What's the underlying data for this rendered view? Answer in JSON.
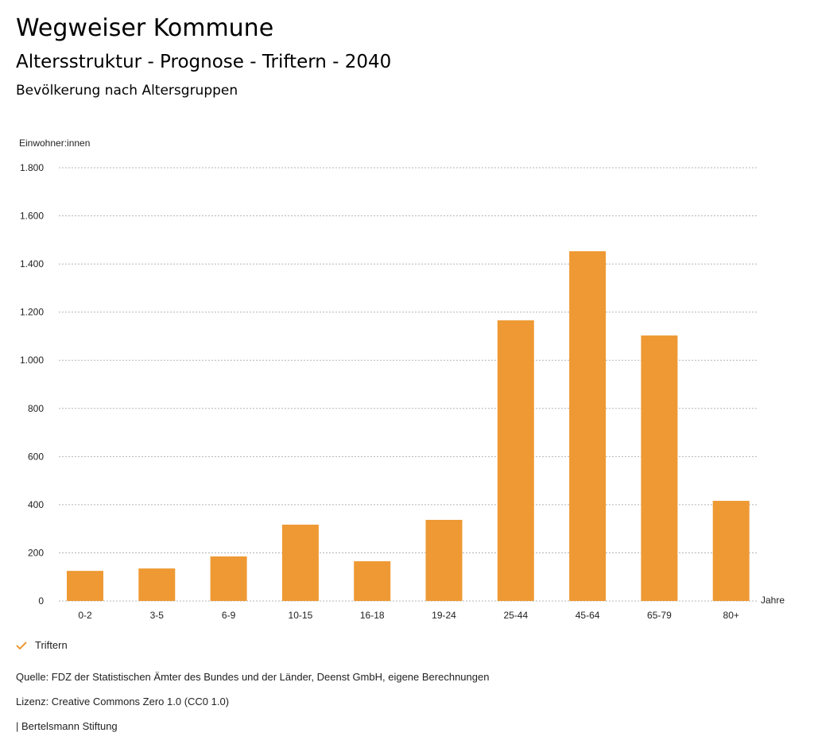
{
  "header": {
    "title": "Wegweiser Kommune",
    "subtitle": "Altersstruktur - Prognose - Triftern - 2040",
    "chart_title": "Bevölkerung nach Altersgruppen"
  },
  "chart_data": {
    "type": "bar",
    "title": "Bevölkerung nach Altersgruppen",
    "ylabel": "Einwohner:innen",
    "xlabel": "Jahre",
    "categories": [
      "0-2",
      "3-5",
      "6-9",
      "10-15",
      "16-18",
      "19-24",
      "25-44",
      "45-64",
      "65-79",
      "80+"
    ],
    "series": [
      {
        "name": "Triftern",
        "values": [
          125,
          135,
          185,
          317,
          165,
          337,
          1166,
          1453,
          1103,
          416
        ],
        "color": "#ee9934"
      }
    ],
    "ylim": [
      0,
      1800
    ],
    "yticks": [
      0,
      200,
      400,
      600,
      800,
      1000,
      1200,
      1400,
      1600,
      1800
    ],
    "ytick_labels": [
      "0",
      "200",
      "400",
      "600",
      "800",
      "1.000",
      "1.200",
      "1.400",
      "1.600",
      "1.800"
    ],
    "grid": true,
    "legend_position": "bottom-left"
  },
  "legend": {
    "label": "Triftern",
    "icon": "check-icon"
  },
  "footer": {
    "source": "Quelle: FDZ der Statistischen Ämter des Bundes und der Länder, Deenst GmbH, eigene Berechnungen",
    "license": "Lizenz: Creative Commons Zero 1.0 (CC0 1.0)",
    "publisher": "| Bertelsmann Stiftung"
  }
}
